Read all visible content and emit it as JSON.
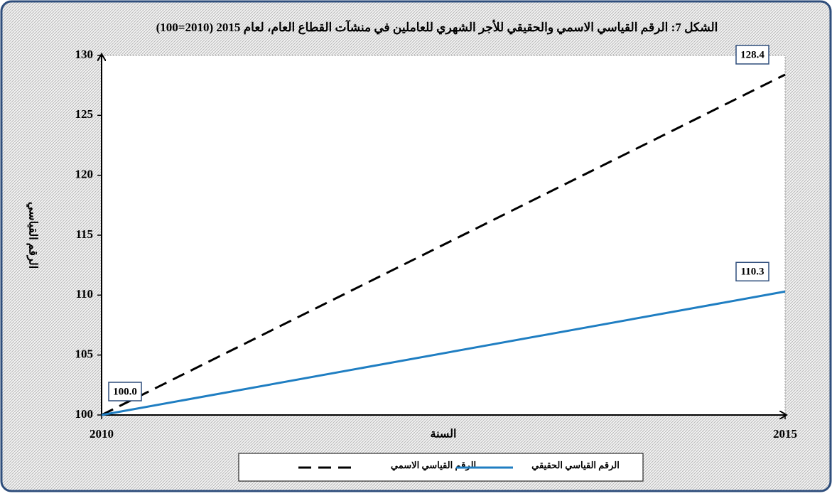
{
  "chart_data": {
    "type": "line",
    "title": "الشكل 7: الرقم القياسي الاسمي والحقيقي للأجر الشهري للعاملين في منشآت القطاع العام، لعام 2015 (2010=100)",
    "x_label": "السنة",
    "y_label": "الرقم القياسي",
    "x": [
      2010,
      2015
    ],
    "series": [
      {
        "name": "الرقم القياسي الاسمي",
        "color": "#000000",
        "dash": "dashed",
        "values": [
          100,
          128.4
        ],
        "value_labels": [
          "100.0",
          "128.4"
        ]
      },
      {
        "name": "الرقم القياسي الحقيقي",
        "color": "#1f7ec2",
        "dash": "solid",
        "values": [
          100,
          110.3
        ],
        "value_labels": [
          null,
          "110.3"
        ]
      }
    ],
    "xlim": [
      2010,
      2015
    ],
    "xticks": [
      2010,
      2015
    ],
    "ylim": [
      100,
      130
    ],
    "yticks": [
      100,
      105,
      110,
      115,
      120,
      125,
      130
    ],
    "grid": false,
    "legend": "bottom"
  }
}
